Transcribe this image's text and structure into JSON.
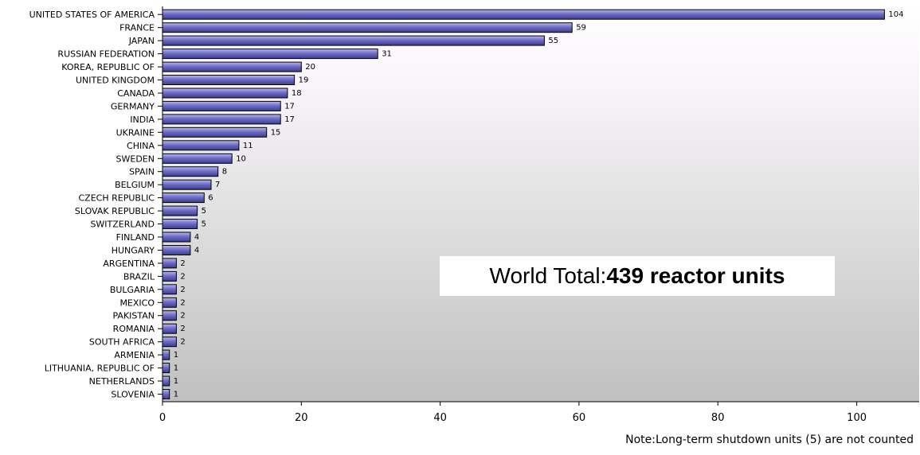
{
  "chart_data": {
    "type": "bar",
    "orientation": "horizontal",
    "categories": [
      "UNITED STATES OF AMERICA",
      "FRANCE",
      "JAPAN",
      "RUSSIAN FEDERATION",
      "KOREA, REPUBLIC OF",
      "UNITED KINGDOM",
      "CANADA",
      "GERMANY",
      "INDIA",
      "UKRAINE",
      "CHINA",
      "SWEDEN",
      "SPAIN",
      "BELGIUM",
      "CZECH REPUBLIC",
      "SLOVAK REPUBLIC",
      "SWITZERLAND",
      "FINLAND",
      "HUNGARY",
      "ARGENTINA",
      "BRAZIL",
      "BULGARIA",
      "MEXICO",
      "PAKISTAN",
      "ROMANIA",
      "SOUTH AFRICA",
      "ARMENIA",
      "LITHUANIA, REPUBLIC OF",
      "NETHERLANDS",
      "SLOVENIA"
    ],
    "values": [
      104,
      59,
      55,
      31,
      20,
      19,
      18,
      17,
      17,
      15,
      11,
      10,
      8,
      7,
      6,
      5,
      5,
      4,
      4,
      2,
      2,
      2,
      2,
      2,
      2,
      2,
      1,
      1,
      1,
      1
    ],
    "xlim": [
      0,
      109
    ],
    "xticks": [
      0,
      20,
      40,
      60,
      80,
      100
    ],
    "grid": false,
    "bar_color": "#6e6ec8",
    "bar_stroke": "#000000"
  },
  "annotation": {
    "label": "World Total:",
    "value": "439 reactor units"
  },
  "note": "Note:Long-term shutdown units (5) are not counted"
}
